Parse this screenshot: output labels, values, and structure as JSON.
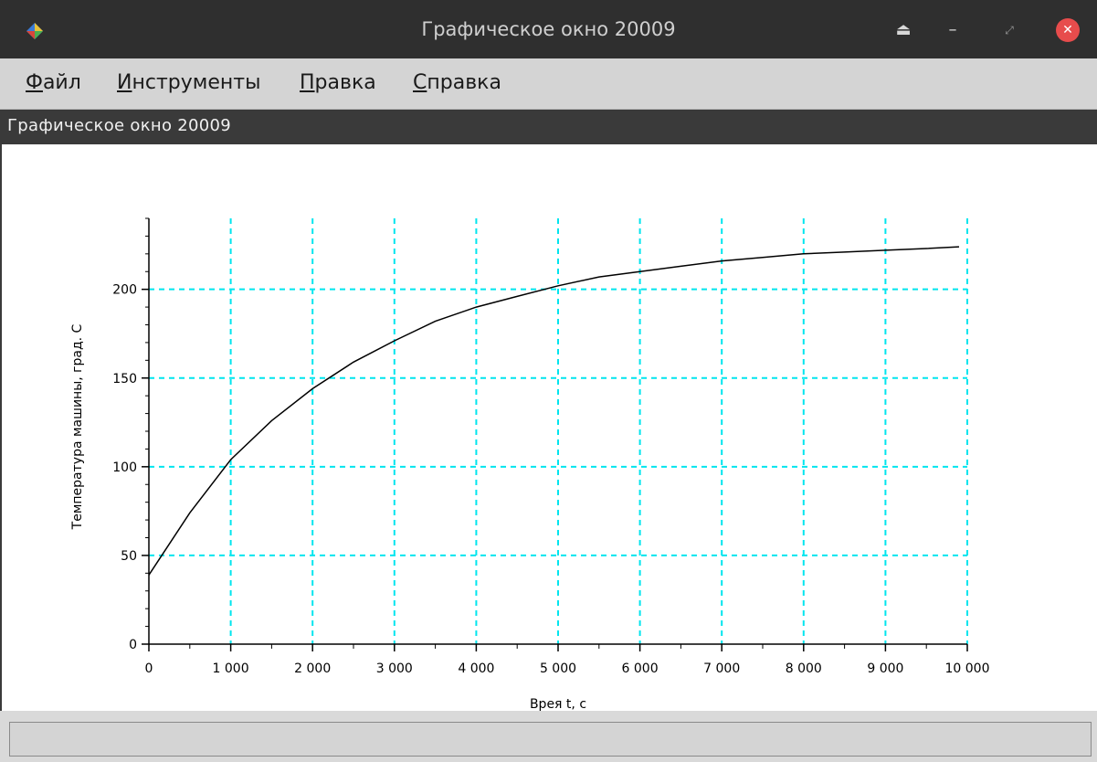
{
  "window": {
    "title": "Графическое окно 20009",
    "subtitle": "Графическое окно 20009"
  },
  "menu": [
    {
      "key": "Ф",
      "rest": "айл"
    },
    {
      "key": "И",
      "rest": "нструменты"
    },
    {
      "key": "П",
      "rest": "равка"
    },
    {
      "key": "С",
      "rest": "правка"
    }
  ],
  "window_buttons": {
    "eject": "⏏",
    "minimize": "–",
    "restore": "⤢",
    "close": "✕"
  },
  "colors": {
    "grid": "#00e5ee",
    "curve": "#000000",
    "close_button": "#e74c4c"
  },
  "chart_data": {
    "type": "line",
    "title": "",
    "xlabel": "Врея t, с",
    "ylabel": "Температура машины, град. С",
    "xlim": [
      0,
      10000
    ],
    "ylim": [
      0,
      240
    ],
    "x_ticks": [
      0,
      1000,
      2000,
      3000,
      4000,
      5000,
      6000,
      7000,
      8000,
      9000,
      10000
    ],
    "x_tick_labels": [
      "0",
      "1 000",
      "2 000",
      "3 000",
      "4 000",
      "5 000",
      "6 000",
      "7 000",
      "8 000",
      "9 000",
      "10 000"
    ],
    "y_ticks": [
      0,
      50,
      100,
      150,
      200
    ],
    "y_tick_labels": [
      "0",
      "50",
      "100",
      "150",
      "200"
    ],
    "grid": true,
    "grid_style": "dashed",
    "series": [
      {
        "x": [
          0,
          500,
          1000,
          1500,
          2000,
          2500,
          3000,
          3500,
          4000,
          4500,
          5000,
          5500,
          6000,
          6500,
          7000,
          7500,
          8000,
          8500,
          9000,
          9500,
          9900
        ],
        "values": [
          39,
          74,
          104,
          126,
          144,
          159,
          171,
          182,
          190,
          196,
          202,
          207,
          210,
          213,
          216,
          218,
          220,
          221,
          222,
          223,
          224
        ]
      }
    ]
  }
}
